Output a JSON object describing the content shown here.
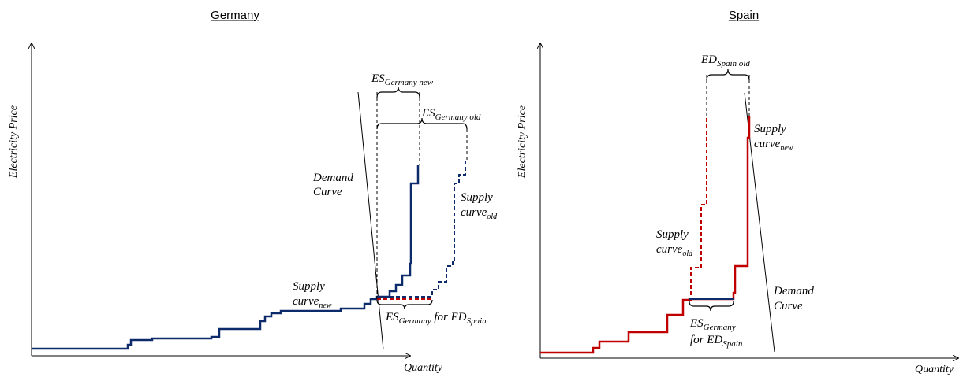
{
  "germany": {
    "title": "Germany",
    "y_axis": "Electricity Price",
    "x_axis": "Quantity",
    "demand": {
      "line1": "Demand",
      "line2": "Curve"
    },
    "supply_new": {
      "line1": "Supply",
      "base": "curve",
      "sub": "new"
    },
    "supply_old": {
      "line1": "Supply",
      "base": "curve",
      "sub": "old"
    },
    "es_new": {
      "base": "ES",
      "sub": "Germany new"
    },
    "es_old": {
      "base": "ES",
      "sub": "Germany old"
    },
    "es_for": {
      "base": "ES",
      "sub": "Germany",
      "mid": " for ",
      "base2": "ED",
      "sub2": "Spain"
    },
    "colors": {
      "supply": "#0d2b6b",
      "export": "#c00000"
    }
  },
  "spain": {
    "title": "Spain",
    "y_axis": "Electricity Price",
    "x_axis": "Quantity",
    "ed_old": {
      "base": "ED",
      "sub": "Spain old"
    },
    "supply_new": {
      "line1": "Supply",
      "base": "curve",
      "sub": "new"
    },
    "supply_old": {
      "line1": "Supply",
      "base": "curve",
      "sub": "old"
    },
    "demand": {
      "line1": "Demand",
      "line2": "Curve"
    },
    "es_for": {
      "base": "ES",
      "sub": "Germany",
      "line2_mid": "for ",
      "base2": "ED",
      "sub2": "Spain"
    },
    "colors": {
      "supply": "#c00000",
      "export": "#0d2b6b"
    }
  }
}
